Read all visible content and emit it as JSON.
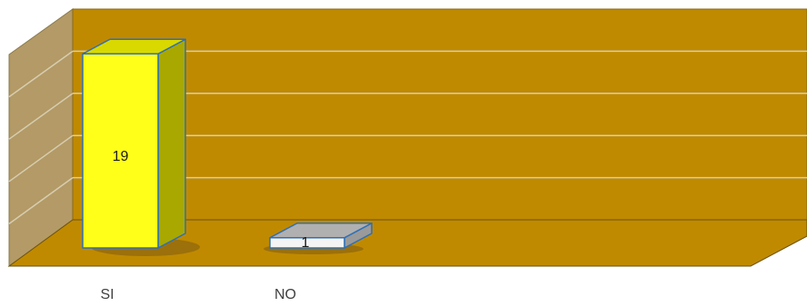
{
  "chart_data": {
    "type": "bar",
    "style": "3d-column",
    "categories": [
      "SI",
      "NO"
    ],
    "values": [
      19,
      1
    ],
    "data_labels": [
      "19",
      "1"
    ],
    "ylim": [
      0,
      20
    ],
    "grid": true,
    "legend": "none",
    "title": "",
    "xlabel": "",
    "ylabel": ""
  },
  "colors": {
    "back_wall": "#c08a00",
    "side_wall": "#b39a66",
    "floor": "#c08a00",
    "gridline": "#d7cdb0",
    "bar_si_front": "#ffff1a",
    "bar_si_side": "#a8a800",
    "bar_si_top": "#d9d900",
    "bar_no_front": "#f4f4f4",
    "bar_no_top": "#b0b0b0",
    "bar_no_side": "#9a9a9a",
    "bar_outline": "#2f6fb6",
    "shadow": "#7d5b12"
  }
}
